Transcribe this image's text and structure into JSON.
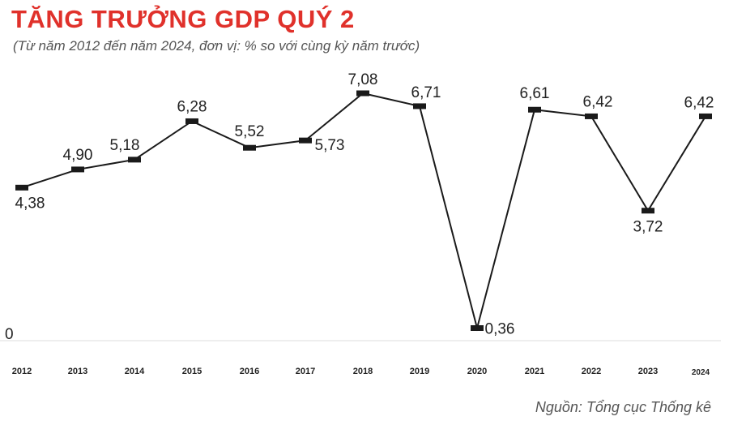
{
  "header": {
    "title": "TĂNG TRƯỞNG GDP QUÝ 2",
    "subtitle": "(Từ năm 2012 đến năm 2024, đơn vị: % so với cùng kỳ năm trước)"
  },
  "footer": {
    "source": "Nguồn: Tổng cục Thống kê"
  },
  "colors": {
    "line": "#1a1a1a",
    "highlight": "#e0312b",
    "title": "#e0312b",
    "axis": "#dddddd"
  },
  "chart_data": {
    "type": "line",
    "title": "TĂNG TRƯỞNG GDP QUÝ 2",
    "subtitle": "(Từ năm 2012 đến năm 2024, đơn vị: % so với cùng kỳ năm trước)",
    "xlabel": "",
    "ylabel": "",
    "categories": [
      "2012",
      "2013",
      "2014",
      "2015",
      "2016",
      "2017",
      "2018",
      "2019",
      "2020",
      "2021",
      "2022",
      "2023",
      "2024"
    ],
    "values": [
      4.38,
      4.9,
      5.18,
      6.28,
      5.52,
      5.73,
      7.08,
      6.71,
      0.36,
      6.61,
      6.42,
      3.72,
      6.42
    ],
    "value_labels": [
      "4,38",
      "4,90",
      "5,18",
      "6,28",
      "5,52",
      "5,73",
      "7,08",
      "6,71",
      "0,36",
      "6,61",
      "6,42",
      "3,72",
      "6,42"
    ],
    "y_tick_labels": [
      "0"
    ],
    "ylim": [
      0,
      8
    ],
    "grid": false,
    "highlight_last": true
  }
}
